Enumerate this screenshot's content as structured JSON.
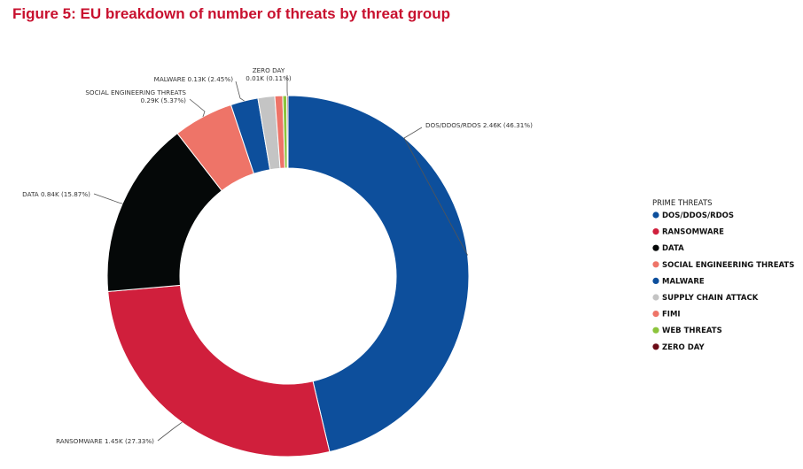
{
  "figure": {
    "title": "Figure 5: EU breakdown of number of threats by threat group"
  },
  "chart_data": {
    "type": "pie",
    "donut": true,
    "legend_title": "PRIME THREATS",
    "legend_position": "right",
    "slices": [
      {
        "name": "DOS/DDOS/RDOS",
        "value": 2.46,
        "percent": 46.31,
        "callout": "DOS/DDOS/RDOS 2.46K (46.31%)",
        "color": "#0d4f9c"
      },
      {
        "name": "RANSOMWARE",
        "value": 1.45,
        "percent": 27.33,
        "callout": "RANSOMWARE 1.45K (27.33%)",
        "color": "#d01f3c"
      },
      {
        "name": "DATA",
        "value": 0.84,
        "percent": 15.87,
        "callout": "DATA 0.84K (15.87%)",
        "color": "#050808"
      },
      {
        "name": "SOCIAL ENGINEERING THREATS",
        "value": 0.29,
        "percent": 5.37,
        "callout_line1": "SOCIAL ENGINEERING THREATS",
        "callout_line2": "0.29K (5.37%)",
        "color": "#ee7468"
      },
      {
        "name": "MALWARE",
        "value": 0.13,
        "percent": 2.45,
        "callout": "MALWARE 0.13K (2.45%)",
        "color": "#0d4f9c"
      },
      {
        "name": "SUPPLY CHAIN ATTACK",
        "value": 0.08,
        "percent": 1.5,
        "color": "#c4c4c4"
      },
      {
        "name": "FIMI",
        "value": 0.04,
        "percent": 0.7,
        "color": "#ee7468"
      },
      {
        "name": "WEB THREATS",
        "value": 0.02,
        "percent": 0.36,
        "color": "#8cc43c"
      },
      {
        "name": "ZERO DAY",
        "value": 0.01,
        "percent": 0.11,
        "callout_line1": "ZERO DAY",
        "callout_line2": "0.01K (0.11%)",
        "color": "#6b0a16"
      }
    ]
  }
}
